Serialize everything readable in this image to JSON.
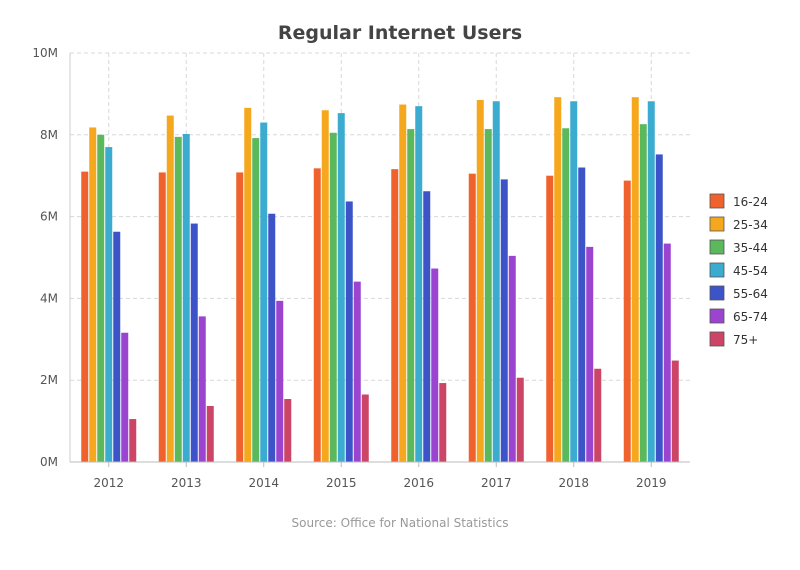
{
  "chart_data": {
    "type": "bar",
    "title": "Regular Internet Users",
    "source": "Source: Office for National Statistics",
    "categories": [
      "2012",
      "2013",
      "2014",
      "2015",
      "2016",
      "2017",
      "2018",
      "2019"
    ],
    "series": [
      {
        "name": "16-24",
        "color": "#f0622d",
        "values": [
          7.1,
          7.08,
          7.08,
          7.18,
          7.16,
          7.05,
          7.0,
          6.88
        ]
      },
      {
        "name": "25-34",
        "color": "#f5a81d",
        "values": [
          8.18,
          8.47,
          8.66,
          8.6,
          8.74,
          8.85,
          8.92,
          8.92
        ]
      },
      {
        "name": "35-44",
        "color": "#5cb85c",
        "values": [
          8.0,
          7.95,
          7.92,
          8.05,
          8.14,
          8.14,
          8.16,
          8.26
        ]
      },
      {
        "name": "45-54",
        "color": "#3bacd0",
        "values": [
          7.7,
          8.02,
          8.3,
          8.53,
          8.7,
          8.82,
          8.82,
          8.82
        ]
      },
      {
        "name": "55-64",
        "color": "#3c54c8",
        "values": [
          5.63,
          5.83,
          6.07,
          6.37,
          6.62,
          6.91,
          7.2,
          7.52
        ]
      },
      {
        "name": "65-74",
        "color": "#9b44d0",
        "values": [
          3.16,
          3.56,
          3.94,
          4.41,
          4.73,
          5.04,
          5.26,
          5.34
        ]
      },
      {
        "name": "75+",
        "color": "#cc4466",
        "values": [
          1.05,
          1.37,
          1.54,
          1.65,
          1.93,
          2.06,
          2.28,
          2.48
        ]
      }
    ],
    "ylim": [
      0,
      10
    ],
    "yticks": [
      "0M",
      "2M",
      "4M",
      "6M",
      "8M",
      "10M"
    ],
    "grid": true,
    "legend_position": "right"
  }
}
